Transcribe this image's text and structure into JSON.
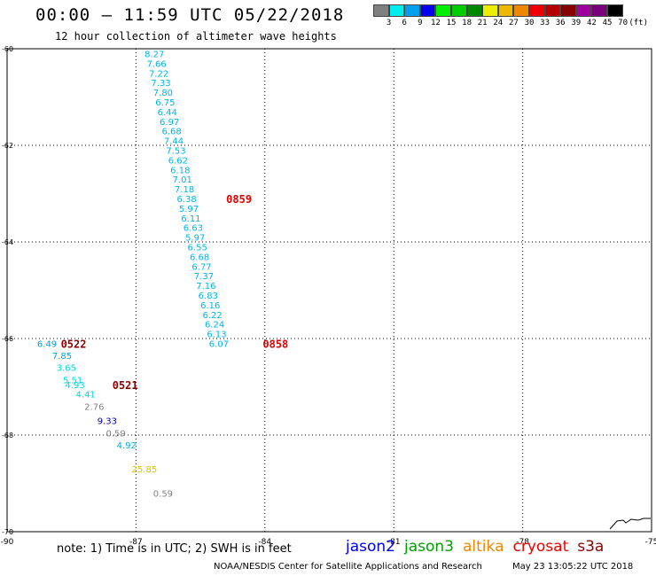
{
  "header": {
    "title": "00:00 – 11:59 UTC 05/22/2018",
    "subtitle": "12 hour collection of altimeter wave heights"
  },
  "colorbar": {
    "colors": [
      "#808080",
      "#00eeee",
      "#00a0ee",
      "#0000ee",
      "#00ee00",
      "#00cc00",
      "#008800",
      "#eeee00",
      "#eeb800",
      "#ee8800",
      "#ee0000",
      "#b40000",
      "#880000",
      "#a000a0",
      "#780078",
      "#000000"
    ],
    "labels": [
      "3",
      "6",
      "9",
      "12",
      "15",
      "18",
      "21",
      "24",
      "27",
      "30",
      "33",
      "36",
      "39",
      "42",
      "45",
      "70",
      "(ft)"
    ]
  },
  "chart_data": {
    "type": "scatter",
    "title": "12 hour collection of altimeter wave heights",
    "xlim": [
      -90,
      -75
    ],
    "ylim": [
      -70,
      -60
    ],
    "x_ticks": [
      "-90",
      "-87",
      "-84",
      "-81",
      "-78",
      "-75"
    ],
    "y_ticks": [
      "-60",
      "-62",
      "-64",
      "-66",
      "-68",
      "-70"
    ],
    "grid": true,
    "series": [
      {
        "name": "cryosat",
        "color": "#00b4e6",
        "points": [
          {
            "lon": -86.8,
            "lat": -60.1,
            "v": "8.27"
          },
          {
            "lon": -86.75,
            "lat": -60.3,
            "v": "7.66"
          },
          {
            "lon": -86.7,
            "lat": -60.5,
            "v": "7.22"
          },
          {
            "lon": -86.65,
            "lat": -60.7,
            "v": "7.33"
          },
          {
            "lon": -86.6,
            "lat": -60.9,
            "v": "7.80"
          },
          {
            "lon": -86.55,
            "lat": -61.1,
            "v": "6.75"
          },
          {
            "lon": -86.5,
            "lat": -61.3,
            "v": "6.44"
          },
          {
            "lon": -86.45,
            "lat": -61.5,
            "v": "6.97"
          },
          {
            "lon": -86.4,
            "lat": -61.7,
            "v": "6.68"
          },
          {
            "lon": -86.35,
            "lat": -61.9,
            "v": "7.44"
          },
          {
            "lon": -86.3,
            "lat": -62.1,
            "v": "7.53"
          },
          {
            "lon": -86.25,
            "lat": -62.3,
            "v": "6.62"
          },
          {
            "lon": -86.2,
            "lat": -62.5,
            "v": "6.18"
          },
          {
            "lon": -86.15,
            "lat": -62.7,
            "v": "7.01"
          },
          {
            "lon": -86.1,
            "lat": -62.9,
            "v": "7.18"
          },
          {
            "lon": -86.05,
            "lat": -63.1,
            "v": "6.38"
          },
          {
            "lon": -86.0,
            "lat": -63.3,
            "v": "5.97"
          },
          {
            "lon": -85.95,
            "lat": -63.5,
            "v": "6.11"
          },
          {
            "lon": -85.9,
            "lat": -63.7,
            "v": "6.63"
          },
          {
            "lon": -85.85,
            "lat": -63.9,
            "v": "5.97"
          },
          {
            "lon": -85.8,
            "lat": -64.1,
            "v": "6.55"
          },
          {
            "lon": -85.75,
            "lat": -64.3,
            "v": "6.68"
          },
          {
            "lon": -85.7,
            "lat": -64.5,
            "v": "6.77"
          },
          {
            "lon": -85.65,
            "lat": -64.7,
            "v": "7.37"
          },
          {
            "lon": -85.6,
            "lat": -64.9,
            "v": "7.16"
          },
          {
            "lon": -85.55,
            "lat": -65.1,
            "v": "6.83"
          },
          {
            "lon": -85.5,
            "lat": -65.3,
            "v": "6.16"
          },
          {
            "lon": -85.45,
            "lat": -65.5,
            "v": "6.22"
          },
          {
            "lon": -85.4,
            "lat": -65.7,
            "v": "6.24"
          },
          {
            "lon": -85.35,
            "lat": -65.9,
            "v": "6.13"
          },
          {
            "lon": -85.3,
            "lat": -66.1,
            "v": "6.07"
          }
        ]
      },
      {
        "name": "s3a",
        "color": "mixed",
        "points": [
          {
            "lon": -89.3,
            "lat": -66.1,
            "v": "6.49",
            "c": "#00a0e0"
          },
          {
            "lon": -88.95,
            "lat": -66.35,
            "v": "7.85",
            "c": "#00a0e0"
          },
          {
            "lon": -88.85,
            "lat": -66.6,
            "v": "3.65",
            "c": "#00d8e0"
          },
          {
            "lon": -88.7,
            "lat": -66.85,
            "v": "5.51",
            "c": "#00d8e0"
          },
          {
            "lon": -88.65,
            "lat": -66.95,
            "v": "4.93",
            "c": "#00d8e0"
          },
          {
            "lon": -88.4,
            "lat": -67.15,
            "v": "4.41",
            "c": "#00d8e0"
          },
          {
            "lon": -88.2,
            "lat": -67.4,
            "v": "2.76",
            "c": "#808080"
          },
          {
            "lon": -87.9,
            "lat": -67.7,
            "v": "9.33",
            "c": "#0000b0"
          },
          {
            "lon": -87.7,
            "lat": -67.95,
            "v": "0.59",
            "c": "#808080"
          },
          {
            "lon": -87.45,
            "lat": -68.2,
            "v": "4.92",
            "c": "#00b0e0"
          },
          {
            "lon": -87.1,
            "lat": -68.7,
            "v": "25.85",
            "c": "#e0c000"
          },
          {
            "lon": -86.6,
            "lat": -69.2,
            "v": "0.59",
            "c": "#808080"
          }
        ]
      }
    ],
    "time_labels": [
      {
        "lon": -84.9,
        "lat": -63.1,
        "t": "0859",
        "c": "#e00000"
      },
      {
        "lon": -84.05,
        "lat": -66.1,
        "t": "0858",
        "c": "#e00000"
      },
      {
        "lon": -88.75,
        "lat": -66.1,
        "t": "0522",
        "c": "#880000"
      },
      {
        "lon": -87.55,
        "lat": -66.95,
        "t": "0521",
        "c": "#880000"
      }
    ]
  },
  "note": "note: 1) Time is in UTC; 2) SWH is in feet",
  "legend": [
    {
      "label": "jason2",
      "color": "#0000ee"
    },
    {
      "label": "jason3",
      "color": "#00a000"
    },
    {
      "label": "altika",
      "color": "#ee8800"
    },
    {
      "label": "cryosat",
      "color": "#ee0000"
    },
    {
      "label": "s3a",
      "color": "#880000"
    }
  ],
  "footer": {
    "credit": "NOAA/NESDIS Center for Satellite Applications and Research",
    "timestamp": "May 23 13:05:22 UTC 2018"
  }
}
